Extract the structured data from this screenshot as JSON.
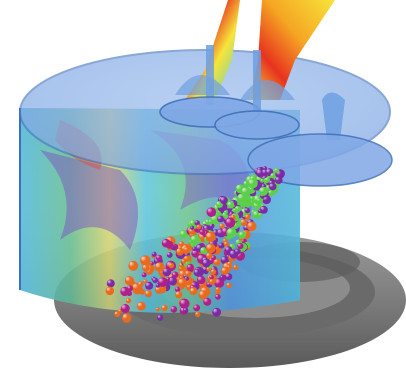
{
  "image": {
    "subject": "cfd-engine-cylinder-fuel-spray",
    "colors": {
      "background": "#ffffff",
      "cylinder_glass": "#6f9fe0",
      "cylinder_edge": "#3f6fb8",
      "piston": "#7d7d7d",
      "piston_dark": "#4d4d4d",
      "flow_red": "#e8321e",
      "flow_yellow": "#f7e43a",
      "flow_green": "#5cc76a",
      "flow_cyan": "#45c9d8",
      "flow_purple": "#7a3fb0",
      "droplet_green": "#5ccf4a",
      "droplet_orange": "#e86a1e",
      "droplet_purple": "#7c2aa6",
      "droplet_magenta": "#b0208a"
    }
  }
}
